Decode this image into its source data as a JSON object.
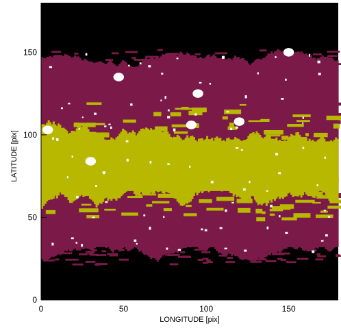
{
  "chart_data": {
    "type": "heatmap",
    "title": "",
    "xlabel": "LONGITUDE [pix]",
    "ylabel": "LATITUDE [pix]",
    "xlim": [
      0,
      180
    ],
    "ylim": [
      0,
      180
    ],
    "xticks": [
      0,
      50,
      100,
      150
    ],
    "yticks": [
      0,
      50,
      100,
      150
    ],
    "grid": false,
    "colors": {
      "background": "#000000",
      "level_low": "#7b1a48",
      "level_mid": "#b9b800",
      "level_high": "#ffffff"
    },
    "map_summary": {
      "level_low_band_latitude": [
        26,
        146
      ],
      "level_mid_band_latitude": [
        46,
        120
      ],
      "level_high_blobs": [
        {
          "longitude": 4,
          "latitude": 103
        },
        {
          "longitude": 30,
          "latitude": 84
        },
        {
          "longitude": 47,
          "latitude": 135
        },
        {
          "longitude": 91,
          "latitude": 106
        },
        {
          "longitude": 95,
          "latitude": 125
        },
        {
          "longitude": 120,
          "latitude": 108
        },
        {
          "longitude": 150,
          "latitude": 150
        }
      ]
    }
  }
}
